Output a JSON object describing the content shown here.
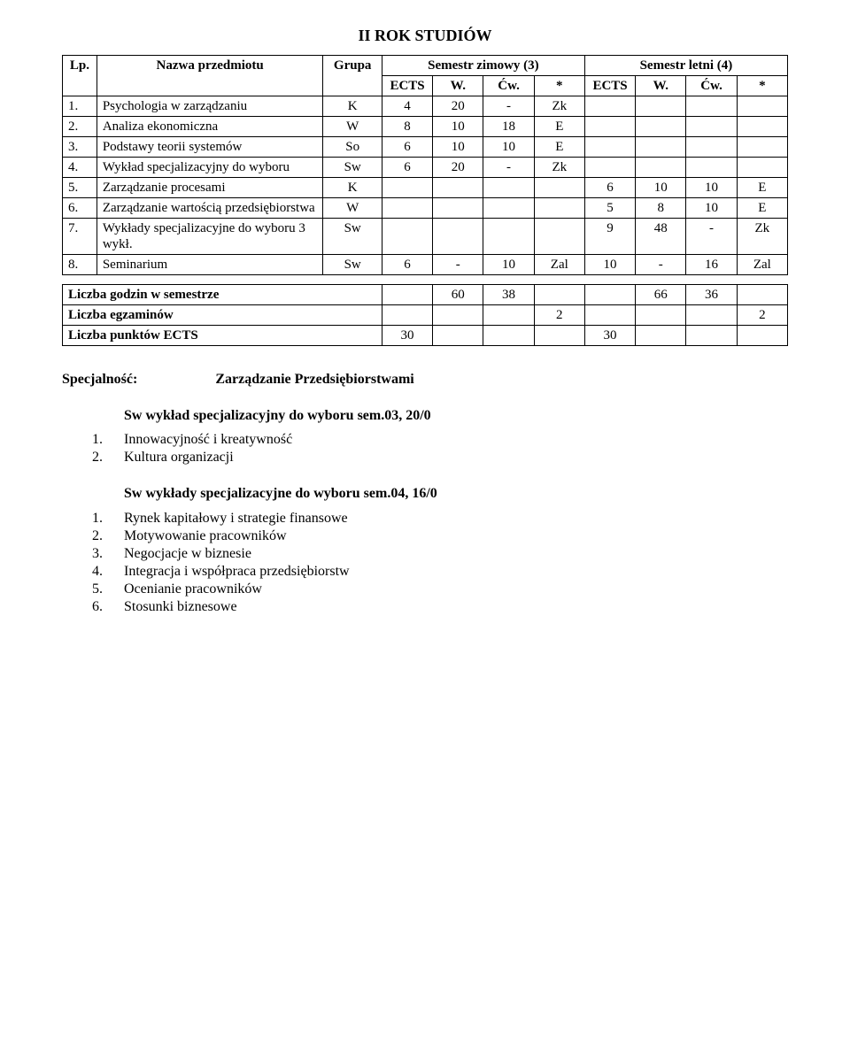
{
  "title": "II ROK STUDIÓW",
  "mainTable": {
    "header1": {
      "lp": "Lp.",
      "nazwa": "Nazwa przedmiotu",
      "grupa": "Grupa",
      "semZim": "Semestr zimowy (3)",
      "semLet": "Semestr letni (4)"
    },
    "header2": {
      "ects1": "ECTS",
      "w1": "W.",
      "cw1": "Ćw.",
      "star1": "*",
      "ects2": "ECTS",
      "w2": "W.",
      "cw2": "Ćw.",
      "star2": "*"
    },
    "rows": [
      {
        "num": "1.",
        "name": "Psychologia w zarządzaniu",
        "grupa": "K",
        "c1": "4",
        "c2": "20",
        "c3": "-",
        "c4": "Zk",
        "c5": "",
        "c6": "",
        "c7": "",
        "c8": ""
      },
      {
        "num": "2.",
        "name": "Analiza ekonomiczna",
        "grupa": "W",
        "c1": "8",
        "c2": "10",
        "c3": "18",
        "c4": "E",
        "c5": "",
        "c6": "",
        "c7": "",
        "c8": ""
      },
      {
        "num": "3.",
        "name": "Podstawy teorii systemów",
        "grupa": "So",
        "c1": "6",
        "c2": "10",
        "c3": "10",
        "c4": "E",
        "c5": "",
        "c6": "",
        "c7": "",
        "c8": ""
      },
      {
        "num": "4.",
        "name": "Wykład specjalizacyjny do wyboru",
        "grupa": "Sw",
        "c1": "6",
        "c2": "20",
        "c3": "-",
        "c4": "Zk",
        "c5": "",
        "c6": "",
        "c7": "",
        "c8": ""
      },
      {
        "num": "5.",
        "name": "Zarządzanie procesami",
        "grupa": "K",
        "c1": "",
        "c2": "",
        "c3": "",
        "c4": "",
        "c5": "6",
        "c6": "10",
        "c7": "10",
        "c8": "E"
      },
      {
        "num": "6.",
        "name": "Zarządzanie wartością przedsiębiorstwa",
        "grupa": "W",
        "c1": "",
        "c2": "",
        "c3": "",
        "c4": "",
        "c5": "5",
        "c6": "8",
        "c7": "10",
        "c8": "E"
      },
      {
        "num": "7.",
        "name": "Wykłady specjalizacyjne do wyboru 3 wykł.",
        "grupa": "Sw",
        "c1": "",
        "c2": "",
        "c3": "",
        "c4": "",
        "c5": "9",
        "c6": "48",
        "c7": "-",
        "c8": "Zk"
      },
      {
        "num": "8.",
        "name": "Seminarium",
        "grupa": "Sw",
        "c1": "6",
        "c2": "-",
        "c3": "10",
        "c4": "Zal",
        "c5": "10",
        "c6": "-",
        "c7": "16",
        "c8": "Zal"
      }
    ],
    "colWidths": {
      "lp": "38px",
      "name": "250px",
      "grupa": "65px",
      "cell": "56px"
    }
  },
  "sumTable": {
    "rows": [
      {
        "label": "Liczba godzin w semestrze",
        "c1": "",
        "c2": "60",
        "c3": "38",
        "c4": "",
        "c5": "",
        "c6": "66",
        "c7": "36",
        "c8": ""
      },
      {
        "label": "Liczba egzaminów",
        "c1": "",
        "c2": "",
        "c3": "",
        "c4": "2",
        "c5": "",
        "c6": "",
        "c7": "",
        "c8": "2"
      },
      {
        "label": "Liczba punktów ECTS",
        "c1": "30",
        "c2": "",
        "c3": "",
        "c4": "",
        "c5": "30",
        "c6": "",
        "c7": "",
        "c8": ""
      }
    ]
  },
  "spec": {
    "label": "Specjalność:",
    "value": "Zarządzanie Przedsiębiorstwami",
    "swHead1": "Sw wykład specjalizacyjny do wyboru sem.03, 20/0",
    "list1": [
      {
        "n": "1.",
        "t": "Innowacyjność i kreatywność"
      },
      {
        "n": "2.",
        "t": "Kultura organizacji"
      }
    ],
    "swHead2": "Sw wykłady specjalizacyjne do wyboru sem.04, 16/0",
    "list2": [
      {
        "n": "1.",
        "t": "Rynek kapitałowy i strategie finansowe"
      },
      {
        "n": "2.",
        "t": "Motywowanie pracowników"
      },
      {
        "n": "3.",
        "t": "Negocjacje w biznesie"
      },
      {
        "n": "4.",
        "t": "Integracja i współpraca przedsiębiorstw"
      },
      {
        "n": "5.",
        "t": "Ocenianie pracowników"
      },
      {
        "n": "6.",
        "t": "Stosunki biznesowe"
      }
    ]
  }
}
